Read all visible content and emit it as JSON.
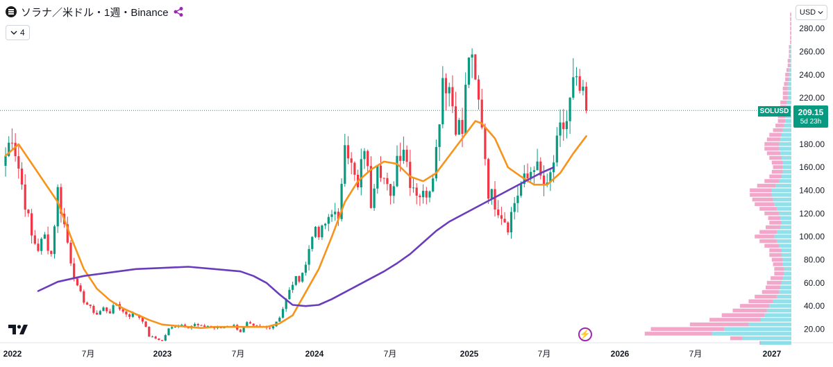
{
  "header": {
    "title": "ソラナ／米ドル・1週・Binance",
    "indicator_count": "4",
    "currency": "USD"
  },
  "price_label": {
    "symbol": "SOLUSD",
    "price": "209.15",
    "countdown": "5d 23h"
  },
  "colors": {
    "up": "#089981",
    "down": "#f23645",
    "ma_short": "#f7931a",
    "ma_long": "#6a3cbc",
    "vp_up": "#38c6d9",
    "vp_down": "#e85d9c"
  },
  "chart_data": {
    "type": "candlestick",
    "title": "ソラナ／米ドル・1週・Binance",
    "x_ticks": [
      "2022",
      "7月",
      "2023",
      "7月",
      "2024",
      "7月",
      "2025",
      "7月",
      "2026",
      "7月",
      "2027"
    ],
    "y_ticks": [
      20,
      40,
      60,
      80,
      100,
      120,
      140,
      160,
      180,
      200,
      220,
      240,
      260,
      280
    ],
    "ylim": [
      0,
      298
    ],
    "last_price": 209.15,
    "close_path": [
      [
        0,
        170
      ],
      [
        2,
        190
      ],
      [
        4,
        160
      ],
      [
        6,
        130
      ],
      [
        8,
        100
      ],
      [
        10,
        90
      ],
      [
        12,
        100
      ],
      [
        14,
        85
      ],
      [
        16,
        140
      ],
      [
        18,
        110
      ],
      [
        20,
        80
      ],
      [
        22,
        55
      ],
      [
        24,
        45
      ],
      [
        26,
        38
      ],
      [
        28,
        33
      ],
      [
        30,
        38
      ],
      [
        32,
        35
      ],
      [
        34,
        42
      ],
      [
        36,
        35
      ],
      [
        38,
        32
      ],
      [
        40,
        33
      ],
      [
        42,
        28
      ],
      [
        44,
        14
      ],
      [
        46,
        12
      ],
      [
        48,
        10
      ],
      [
        50,
        20
      ],
      [
        52,
        23
      ],
      [
        54,
        24
      ],
      [
        56,
        22
      ],
      [
        58,
        24
      ],
      [
        60,
        22
      ],
      [
        62,
        23
      ],
      [
        64,
        21
      ],
      [
        66,
        21
      ],
      [
        68,
        23
      ],
      [
        70,
        23
      ],
      [
        72,
        18
      ],
      [
        74,
        25
      ],
      [
        76,
        22
      ],
      [
        78,
        22
      ],
      [
        80,
        21
      ],
      [
        82,
        23
      ],
      [
        84,
        31
      ],
      [
        86,
        45
      ],
      [
        88,
        60
      ],
      [
        90,
        65
      ],
      [
        92,
        75
      ],
      [
        94,
        105
      ],
      [
        96,
        100
      ],
      [
        98,
        110
      ],
      [
        100,
        125
      ],
      [
        102,
        110
      ],
      [
        104,
        190
      ],
      [
        106,
        160
      ],
      [
        108,
        140
      ],
      [
        110,
        180
      ],
      [
        112,
        130
      ],
      [
        114,
        170
      ],
      [
        116,
        150
      ],
      [
        118,
        130
      ],
      [
        120,
        170
      ],
      [
        122,
        180
      ],
      [
        124,
        150
      ],
      [
        126,
        140
      ],
      [
        128,
        135
      ],
      [
        130,
        145
      ],
      [
        132,
        175
      ],
      [
        134,
        240
      ],
      [
        136,
        230
      ],
      [
        138,
        200
      ],
      [
        140,
        190
      ],
      [
        142,
        260
      ],
      [
        144,
        230
      ],
      [
        146,
        200
      ],
      [
        148,
        140
      ],
      [
        150,
        130
      ],
      [
        152,
        120
      ],
      [
        154,
        110
      ],
      [
        156,
        130
      ],
      [
        158,
        145
      ],
      [
        160,
        150
      ],
      [
        162,
        165
      ],
      [
        164,
        150
      ],
      [
        166,
        140
      ],
      [
        168,
        165
      ],
      [
        170,
        190
      ],
      [
        172,
        200
      ],
      [
        174,
        230
      ],
      [
        176,
        225
      ],
      [
        178,
        209.15
      ]
    ],
    "series": [
      {
        "name": "MA short",
        "points": [
          [
            0,
            170
          ],
          [
            4,
            180
          ],
          [
            10,
            155
          ],
          [
            16,
            130
          ],
          [
            20,
            100
          ],
          [
            24,
            72
          ],
          [
            28,
            55
          ],
          [
            32,
            45
          ],
          [
            36,
            38
          ],
          [
            40,
            33
          ],
          [
            44,
            28
          ],
          [
            48,
            24
          ],
          [
            52,
            23
          ],
          [
            56,
            22
          ],
          [
            60,
            21
          ],
          [
            64,
            22
          ],
          [
            68,
            22
          ],
          [
            72,
            22
          ],
          [
            76,
            22
          ],
          [
            80,
            22
          ],
          [
            84,
            25
          ],
          [
            88,
            32
          ],
          [
            92,
            52
          ],
          [
            96,
            72
          ],
          [
            100,
            100
          ],
          [
            104,
            130
          ],
          [
            108,
            148
          ],
          [
            112,
            158
          ],
          [
            116,
            165
          ],
          [
            120,
            163
          ],
          [
            124,
            152
          ],
          [
            128,
            148
          ],
          [
            132,
            155
          ],
          [
            136,
            170
          ],
          [
            140,
            185
          ],
          [
            144,
            200
          ],
          [
            146,
            198
          ],
          [
            150,
            185
          ],
          [
            154,
            160
          ],
          [
            158,
            152
          ],
          [
            162,
            145
          ],
          [
            166,
            145
          ],
          [
            170,
            155
          ],
          [
            174,
            172
          ],
          [
            178,
            187
          ]
        ]
      },
      {
        "name": "MA long",
        "points": [
          [
            10,
            53
          ],
          [
            16,
            61
          ],
          [
            24,
            66
          ],
          [
            32,
            69
          ],
          [
            40,
            72
          ],
          [
            48,
            73
          ],
          [
            56,
            74
          ],
          [
            64,
            72
          ],
          [
            72,
            70
          ],
          [
            76,
            66
          ],
          [
            80,
            60
          ],
          [
            84,
            50
          ],
          [
            88,
            41
          ],
          [
            92,
            40
          ],
          [
            96,
            41
          ],
          [
            100,
            46
          ],
          [
            104,
            52
          ],
          [
            108,
            58
          ],
          [
            112,
            64
          ],
          [
            116,
            70
          ],
          [
            120,
            77
          ],
          [
            124,
            85
          ],
          [
            128,
            95
          ],
          [
            132,
            105
          ],
          [
            136,
            113
          ],
          [
            140,
            119
          ],
          [
            144,
            125
          ],
          [
            148,
            131
          ],
          [
            152,
            137
          ],
          [
            156,
            143
          ],
          [
            160,
            149
          ],
          [
            164,
            155
          ],
          [
            168,
            160
          ]
        ]
      }
    ],
    "volume_profile": {
      "bins": [
        [
          8,
          25,
          1
        ],
        [
          12,
          40,
          10
        ],
        [
          16,
          65,
          55
        ],
        [
          20,
          55,
          60
        ],
        [
          24,
          35,
          48
        ],
        [
          28,
          25,
          42
        ],
        [
          32,
          22,
          35
        ],
        [
          36,
          20,
          28
        ],
        [
          40,
          18,
          24
        ],
        [
          44,
          15,
          20
        ],
        [
          48,
          12,
          18
        ],
        [
          52,
          10,
          14
        ],
        [
          56,
          9,
          12
        ],
        [
          60,
          8,
          12
        ],
        [
          64,
          7,
          10
        ],
        [
          68,
          6,
          8
        ],
        [
          72,
          6,
          8
        ],
        [
          76,
          7,
          8
        ],
        [
          80,
          7,
          9
        ],
        [
          84,
          8,
          10
        ],
        [
          88,
          8,
          10
        ],
        [
          92,
          10,
          12
        ],
        [
          96,
          12,
          14
        ],
        [
          100,
          14,
          16
        ],
        [
          104,
          12,
          14
        ],
        [
          108,
          9,
          12
        ],
        [
          112,
          8,
          10
        ],
        [
          116,
          9,
          10
        ],
        [
          120,
          10,
          12
        ],
        [
          124,
          12,
          14
        ],
        [
          128,
          14,
          16
        ],
        [
          132,
          15,
          17
        ],
        [
          136,
          16,
          18
        ],
        [
          140,
          16,
          18
        ],
        [
          144,
          13,
          15
        ],
        [
          148,
          10,
          12
        ],
        [
          152,
          8,
          10
        ],
        [
          156,
          7,
          9
        ],
        [
          160,
          7,
          8
        ],
        [
          164,
          7,
          9
        ],
        [
          168,
          8,
          10
        ],
        [
          172,
          9,
          11
        ],
        [
          176,
          10,
          12
        ],
        [
          180,
          10,
          12
        ],
        [
          184,
          9,
          11
        ],
        [
          188,
          8,
          10
        ],
        [
          192,
          7,
          8
        ],
        [
          196,
          6,
          7
        ],
        [
          200,
          5,
          6
        ],
        [
          204,
          5,
          6
        ],
        [
          208,
          5,
          6
        ],
        [
          212,
          4,
          5
        ],
        [
          216,
          4,
          5
        ],
        [
          220,
          3,
          4
        ],
        [
          224,
          3,
          4
        ],
        [
          228,
          3,
          4
        ],
        [
          232,
          3,
          3
        ],
        [
          236,
          2,
          3
        ],
        [
          240,
          2,
          3
        ],
        [
          244,
          2,
          2
        ],
        [
          248,
          1,
          2
        ],
        [
          252,
          1,
          2
        ],
        [
          256,
          1,
          1
        ],
        [
          260,
          1,
          1
        ],
        [
          264,
          1,
          1
        ],
        [
          268,
          0,
          1
        ],
        [
          272,
          0,
          1
        ],
        [
          276,
          0,
          1
        ],
        [
          280,
          0,
          1
        ],
        [
          284,
          0,
          1
        ],
        [
          288,
          0,
          1
        ],
        [
          292,
          0,
          1
        ]
      ]
    }
  }
}
